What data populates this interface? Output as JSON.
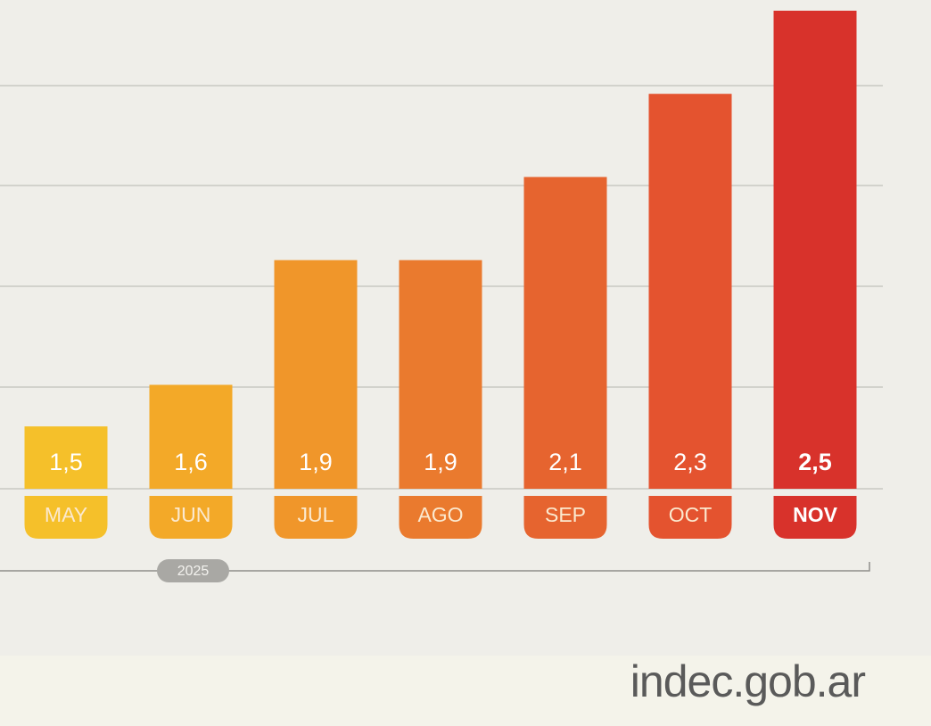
{
  "chart_data": {
    "type": "bar",
    "categories": [
      "MAY",
      "JUN",
      "JUL",
      "AGO",
      "SEP",
      "OCT",
      "NOV"
    ],
    "values": [
      1.5,
      1.6,
      1.9,
      1.9,
      2.1,
      2.3,
      2.5
    ],
    "value_labels": [
      "1,5",
      "1,6",
      "1,9",
      "1,9",
      "2,1",
      "2,3",
      "2,5"
    ],
    "colors": [
      "#f5c02a",
      "#f3a928",
      "#f0962a",
      "#ea7a2e",
      "#e6642f",
      "#e4532f",
      "#d8322b"
    ],
    "ylim": [
      1.35,
      2.5
    ],
    "period": "2025",
    "source": "indec.gob.ar"
  }
}
